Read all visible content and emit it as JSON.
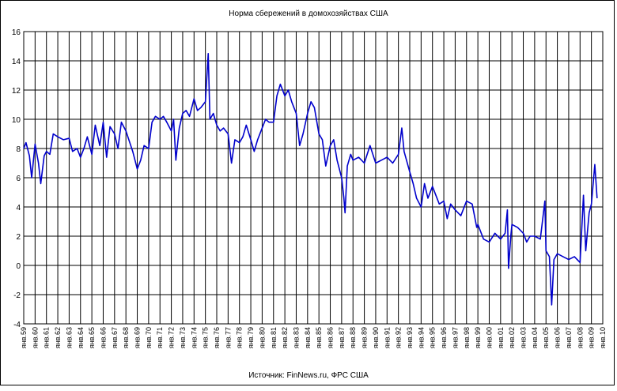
{
  "chart_data": {
    "type": "line",
    "title": "Норма сбережений в домохозяйствах США",
    "source": "Источник: FinNews.ru, ФРС США",
    "color": "#0000cc",
    "xlim": [
      1959,
      2010
    ],
    "ylim": [
      -4,
      16
    ],
    "yticks": [
      -4,
      -2,
      0,
      2,
      4,
      6,
      8,
      10,
      12,
      14,
      16
    ],
    "grid": true,
    "xticks": [
      {
        "value": 1959,
        "label": "янв.59"
      },
      {
        "value": 1960,
        "label": "янв.60"
      },
      {
        "value": 1961,
        "label": "янв.61"
      },
      {
        "value": 1962,
        "label": "янв.62"
      },
      {
        "value": 1963,
        "label": "янв.63"
      },
      {
        "value": 1964,
        "label": "янв.64"
      },
      {
        "value": 1965,
        "label": "янв.65"
      },
      {
        "value": 1966,
        "label": "янв.66"
      },
      {
        "value": 1967,
        "label": "янв.67"
      },
      {
        "value": 1968,
        "label": "янв.68"
      },
      {
        "value": 1969,
        "label": "янв.69"
      },
      {
        "value": 1970,
        "label": "янв.70"
      },
      {
        "value": 1971,
        "label": "янв.71"
      },
      {
        "value": 1972,
        "label": "янв.72"
      },
      {
        "value": 1973,
        "label": "янв.73"
      },
      {
        "value": 1974,
        "label": "янв.74"
      },
      {
        "value": 1975,
        "label": "янв.75"
      },
      {
        "value": 1976,
        "label": "янв.76"
      },
      {
        "value": 1977,
        "label": "янв.77"
      },
      {
        "value": 1978,
        "label": "янв.78"
      },
      {
        "value": 1979,
        "label": "янв.79"
      },
      {
        "value": 1980,
        "label": "янв.80"
      },
      {
        "value": 1981,
        "label": "янв.81"
      },
      {
        "value": 1982,
        "label": "янв.82"
      },
      {
        "value": 1983,
        "label": "янв.83"
      },
      {
        "value": 1984,
        "label": "янв.84"
      },
      {
        "value": 1985,
        "label": "янв.85"
      },
      {
        "value": 1986,
        "label": "янв.86"
      },
      {
        "value": 1987,
        "label": "янв.87"
      },
      {
        "value": 1988,
        "label": "янв.88"
      },
      {
        "value": 1989,
        "label": "янв.89"
      },
      {
        "value": 1990,
        "label": "янв.90"
      },
      {
        "value": 1991,
        "label": "янв.91"
      },
      {
        "value": 1992,
        "label": "янв.92"
      },
      {
        "value": 1993,
        "label": "янв.93"
      },
      {
        "value": 1994,
        "label": "янв.94"
      },
      {
        "value": 1995,
        "label": "янв.95"
      },
      {
        "value": 1996,
        "label": "янв.96"
      },
      {
        "value": 1997,
        "label": "янв.97"
      },
      {
        "value": 1998,
        "label": "янв.98"
      },
      {
        "value": 1999,
        "label": "янв.99"
      },
      {
        "value": 2000,
        "label": "янв.00"
      },
      {
        "value": 2001,
        "label": "янв.01"
      },
      {
        "value": 2002,
        "label": "янв.02"
      },
      {
        "value": 2003,
        "label": "янв.03"
      },
      {
        "value": 2004,
        "label": "янв.04"
      },
      {
        "value": 2005,
        "label": "янв.05"
      },
      {
        "value": 2006,
        "label": "янв.06"
      },
      {
        "value": 2007,
        "label": "янв.07"
      },
      {
        "value": 2008,
        "label": "янв.08"
      },
      {
        "value": 2009,
        "label": "янв.09"
      },
      {
        "value": 2010,
        "label": "янв.10"
      }
    ],
    "x": [
      1959.0,
      1959.2,
      1959.5,
      1959.7,
      1960.0,
      1960.3,
      1960.5,
      1960.8,
      1961.0,
      1961.3,
      1961.6,
      1962.0,
      1962.5,
      1963.0,
      1963.3,
      1963.7,
      1964.0,
      1964.3,
      1964.6,
      1965.0,
      1965.3,
      1965.7,
      1966.0,
      1966.3,
      1966.6,
      1967.0,
      1967.3,
      1967.6,
      1968.0,
      1968.3,
      1968.6,
      1969.0,
      1969.3,
      1969.6,
      1970.0,
      1970.3,
      1970.6,
      1971.0,
      1971.3,
      1971.6,
      1972.0,
      1972.2,
      1972.4,
      1972.7,
      1973.0,
      1973.3,
      1973.6,
      1974.0,
      1974.3,
      1974.6,
      1975.0,
      1975.25,
      1975.4,
      1975.7,
      1976.0,
      1976.3,
      1976.6,
      1977.0,
      1977.3,
      1977.6,
      1978.0,
      1978.3,
      1978.6,
      1979.0,
      1979.3,
      1979.6,
      1980.0,
      1980.3,
      1980.6,
      1981.0,
      1981.3,
      1981.6,
      1982.0,
      1982.3,
      1982.6,
      1983.0,
      1983.3,
      1983.6,
      1984.0,
      1984.3,
      1984.6,
      1985.0,
      1985.3,
      1985.6,
      1986.0,
      1986.3,
      1986.6,
      1987.0,
      1987.2,
      1987.3,
      1987.5,
      1987.8,
      1988.0,
      1988.5,
      1989.0,
      1989.5,
      1990.0,
      1990.5,
      1991.0,
      1991.5,
      1992.0,
      1992.3,
      1992.5,
      1993.0,
      1993.3,
      1993.6,
      1994.0,
      1994.3,
      1994.6,
      1995.0,
      1995.3,
      1995.6,
      1996.0,
      1996.3,
      1996.6,
      1997.0,
      1997.5,
      1998.0,
      1998.5,
      1998.9,
      1999.0,
      1999.5,
      2000.0,
      2000.5,
      2001.0,
      2001.4,
      2001.6,
      2001.7,
      2001.9,
      2002.0,
      2002.5,
      2003.0,
      2003.3,
      2003.6,
      2004.0,
      2004.5,
      2004.9,
      2005.0,
      2005.3,
      2005.5,
      2005.7,
      2006.0,
      2006.5,
      2007.0,
      2007.5,
      2008.0,
      2008.3,
      2008.5,
      2008.8,
      2009.0,
      2009.3,
      2009.5
    ],
    "values": [
      8.0,
      8.4,
      7.5,
      6.0,
      8.3,
      7.0,
      5.6,
      7.5,
      7.8,
      7.6,
      9.0,
      8.8,
      8.6,
      8.7,
      7.8,
      8.0,
      7.4,
      8.0,
      8.8,
      7.6,
      9.6,
      8.2,
      9.8,
      7.4,
      9.5,
      9.0,
      8.0,
      9.8,
      9.2,
      8.5,
      7.8,
      6.6,
      7.2,
      8.2,
      8.0,
      9.8,
      10.2,
      10.0,
      10.2,
      9.8,
      9.2,
      10.0,
      7.2,
      9.4,
      10.4,
      10.6,
      10.2,
      11.4,
      10.6,
      10.8,
      11.2,
      14.5,
      10.0,
      10.4,
      9.6,
      9.2,
      9.4,
      9.0,
      7.0,
      8.6,
      8.4,
      8.8,
      9.6,
      8.6,
      7.8,
      8.6,
      9.4,
      10.0,
      9.8,
      9.8,
      11.6,
      12.4,
      11.6,
      12.0,
      11.2,
      10.4,
      8.2,
      9.0,
      10.4,
      11.2,
      10.8,
      9.0,
      8.6,
      6.8,
      8.2,
      8.6,
      7.2,
      6.0,
      4.6,
      3.6,
      6.8,
      7.6,
      7.2,
      7.4,
      7.0,
      8.2,
      7.0,
      7.2,
      7.4,
      7.0,
      7.6,
      9.4,
      7.8,
      6.4,
      5.6,
      4.6,
      4.0,
      5.6,
      4.6,
      5.4,
      4.8,
      4.2,
      4.4,
      3.2,
      4.2,
      3.8,
      3.4,
      4.4,
      4.2,
      2.6,
      2.8,
      1.8,
      1.6,
      2.2,
      1.8,
      2.2,
      3.8,
      -0.2,
      2.0,
      2.8,
      2.6,
      2.2,
      1.6,
      2.0,
      2.0,
      1.8,
      4.4,
      1.0,
      0.6,
      -2.7,
      0.4,
      0.8,
      0.6,
      0.4,
      0.6,
      0.2,
      4.8,
      1.0,
      3.6,
      4.2,
      6.9,
      4.6
    ]
  }
}
